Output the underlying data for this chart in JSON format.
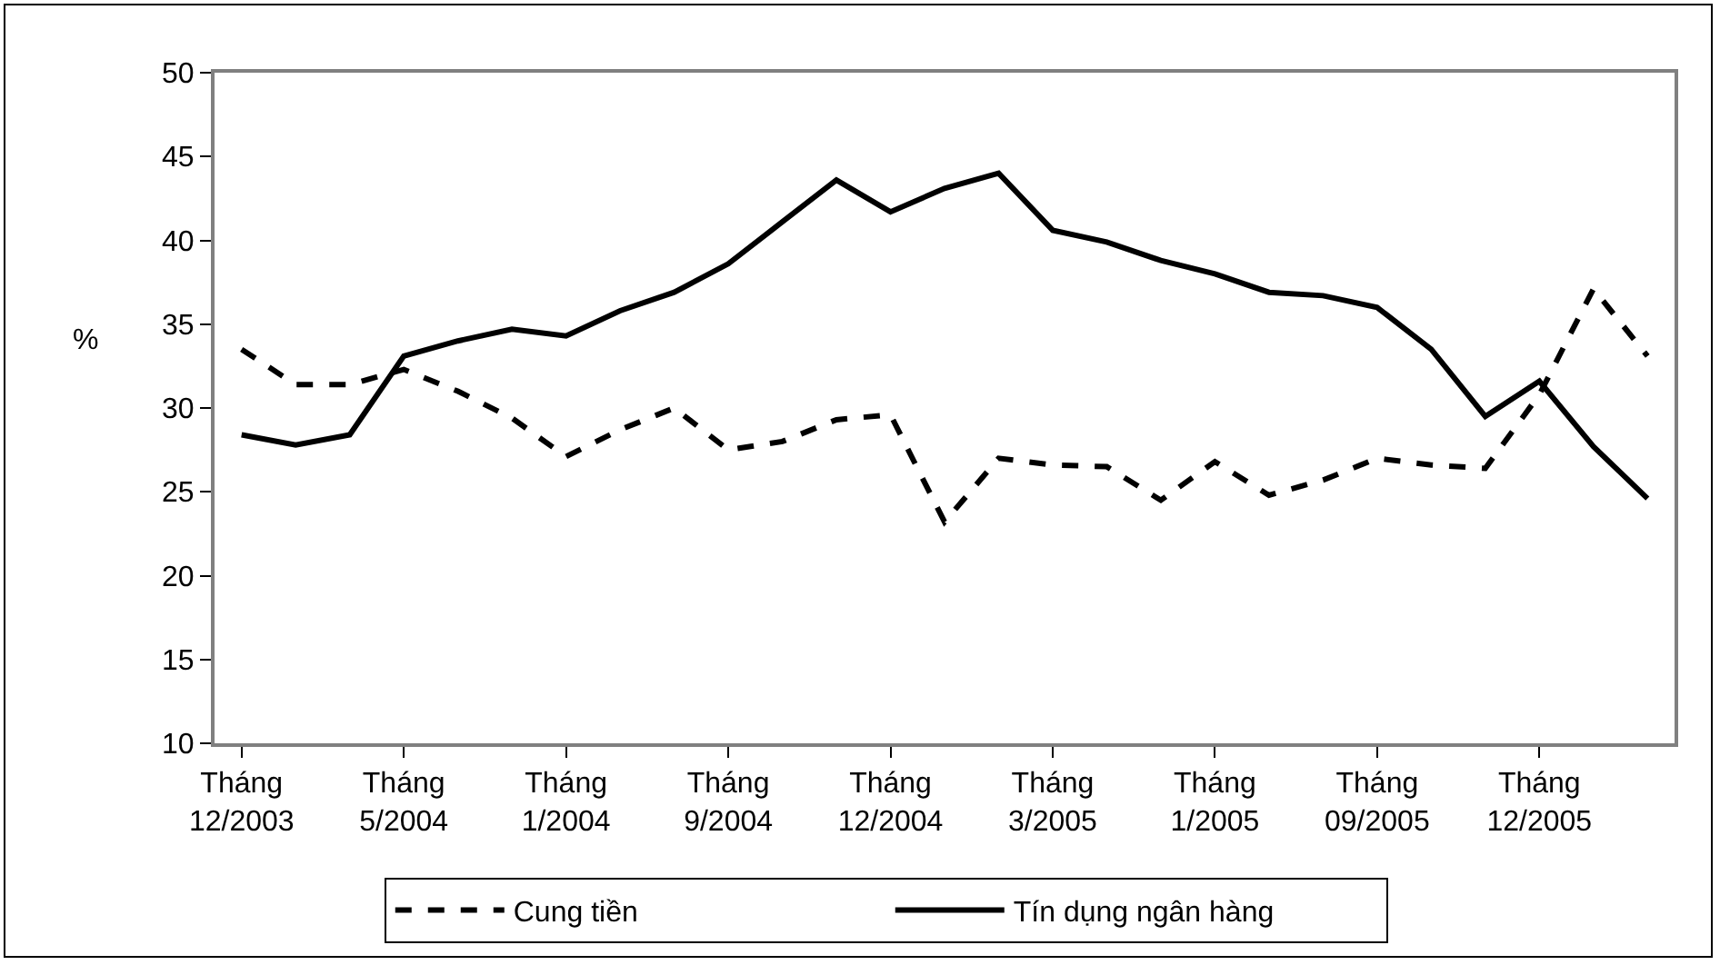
{
  "chart_data": {
    "type": "line",
    "ylabel": "%",
    "categories": [
      "Tháng\n12/2003",
      null,
      null,
      "Tháng\n5/2004",
      null,
      null,
      "Tháng\n1/2004",
      null,
      null,
      "Tháng\n9/2004",
      null,
      null,
      "Tháng\n12/2004",
      null,
      null,
      "Tháng\n3/2005",
      null,
      null,
      "Tháng\n1/2005",
      null,
      null,
      "Tháng\n09/2005",
      null,
      null,
      "Tháng\n12/2005",
      null,
      null
    ],
    "series": [
      {
        "name": "Cung tiền",
        "color": "#000000",
        "line_style": "dashed",
        "values": [
          33.5,
          31.4,
          31.4,
          32.3,
          31.0,
          29.4,
          27.1,
          28.7,
          30.0,
          27.5,
          28.0,
          29.3,
          29.6,
          23.2,
          27.0,
          26.6,
          26.5,
          24.5,
          26.8,
          24.8,
          25.7,
          27.0,
          26.6,
          26.4,
          30.8,
          37.1,
          33.1
        ]
      },
      {
        "name": "Tín dụng ngân hàng",
        "color": "#000000",
        "line_style": "solid",
        "values": [
          28.4,
          27.8,
          28.4,
          33.1,
          34.0,
          34.7,
          34.3,
          35.8,
          36.9,
          38.6,
          41.1,
          43.6,
          41.7,
          43.1,
          44.0,
          40.6,
          39.9,
          38.8,
          38.0,
          36.9,
          36.7,
          36.0,
          33.5,
          29.5,
          31.6,
          27.7,
          24.6
        ]
      }
    ],
    "ylim": [
      10,
      50
    ],
    "yticks": [
      10,
      15,
      20,
      25,
      30,
      35,
      40,
      45,
      50
    ],
    "grid": false,
    "legend": "bottom",
    "marker": "none"
  }
}
